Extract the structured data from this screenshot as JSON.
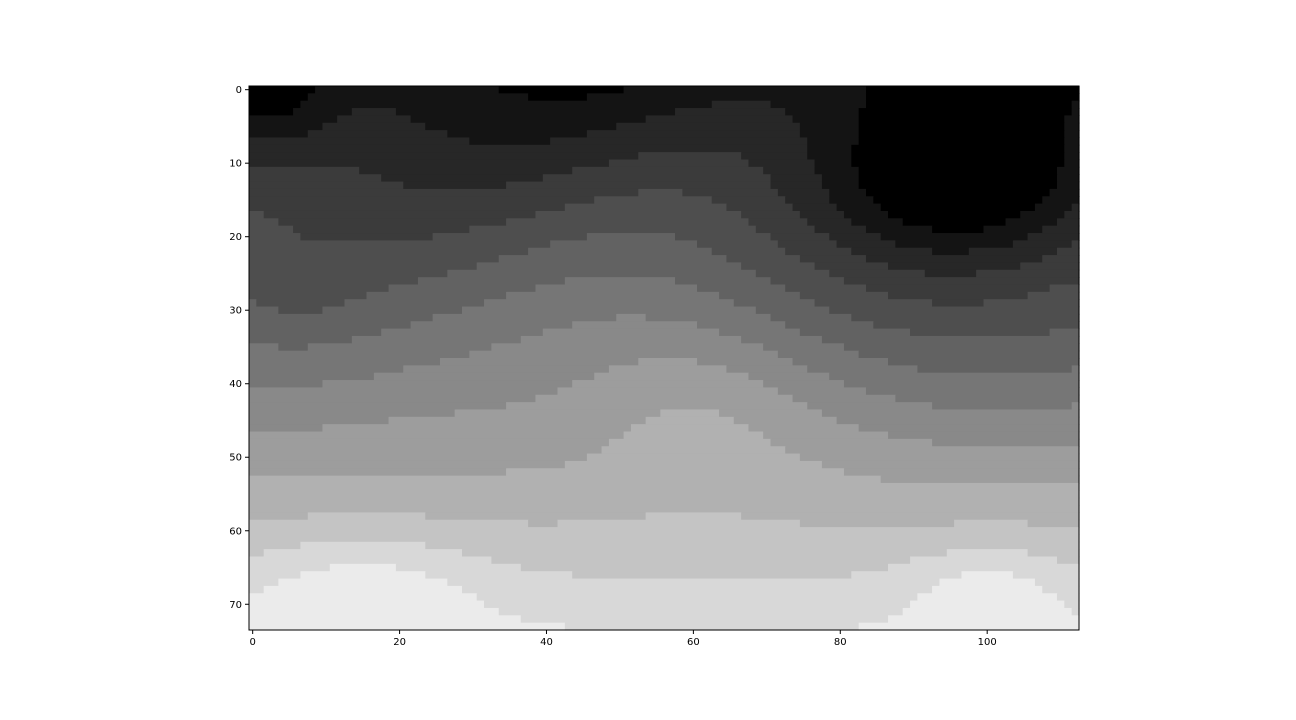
{
  "chart_data": {
    "type": "heatmap",
    "title": "",
    "xlabel": "",
    "ylabel": "",
    "colormap": "gray",
    "grid": false,
    "x_range": [
      -0.5,
      112.5
    ],
    "y_range": [
      73.5,
      -0.5
    ],
    "x_ticks": [
      0,
      20,
      40,
      60,
      80,
      100
    ],
    "x_tick_labels": [
      "0",
      "20",
      "40",
      "60",
      "80",
      "100"
    ],
    "y_ticks": [
      0,
      10,
      20,
      30,
      40,
      50,
      60,
      70
    ],
    "y_tick_labels": [
      "0",
      "10",
      "20",
      "30",
      "40",
      "50",
      "60",
      "70"
    ],
    "levels": 14,
    "value_range": [
      0,
      1
    ],
    "field_description": "Smooth, banded intensity field: darkest near (x≈98, y≈13) and upper-left, brightening downward, with a bright ridge around x≈60, y≈40 and white fields at bottom-left and bottom-right"
  },
  "colors": {
    "background": "#ffffff",
    "axes": "#000000"
  }
}
